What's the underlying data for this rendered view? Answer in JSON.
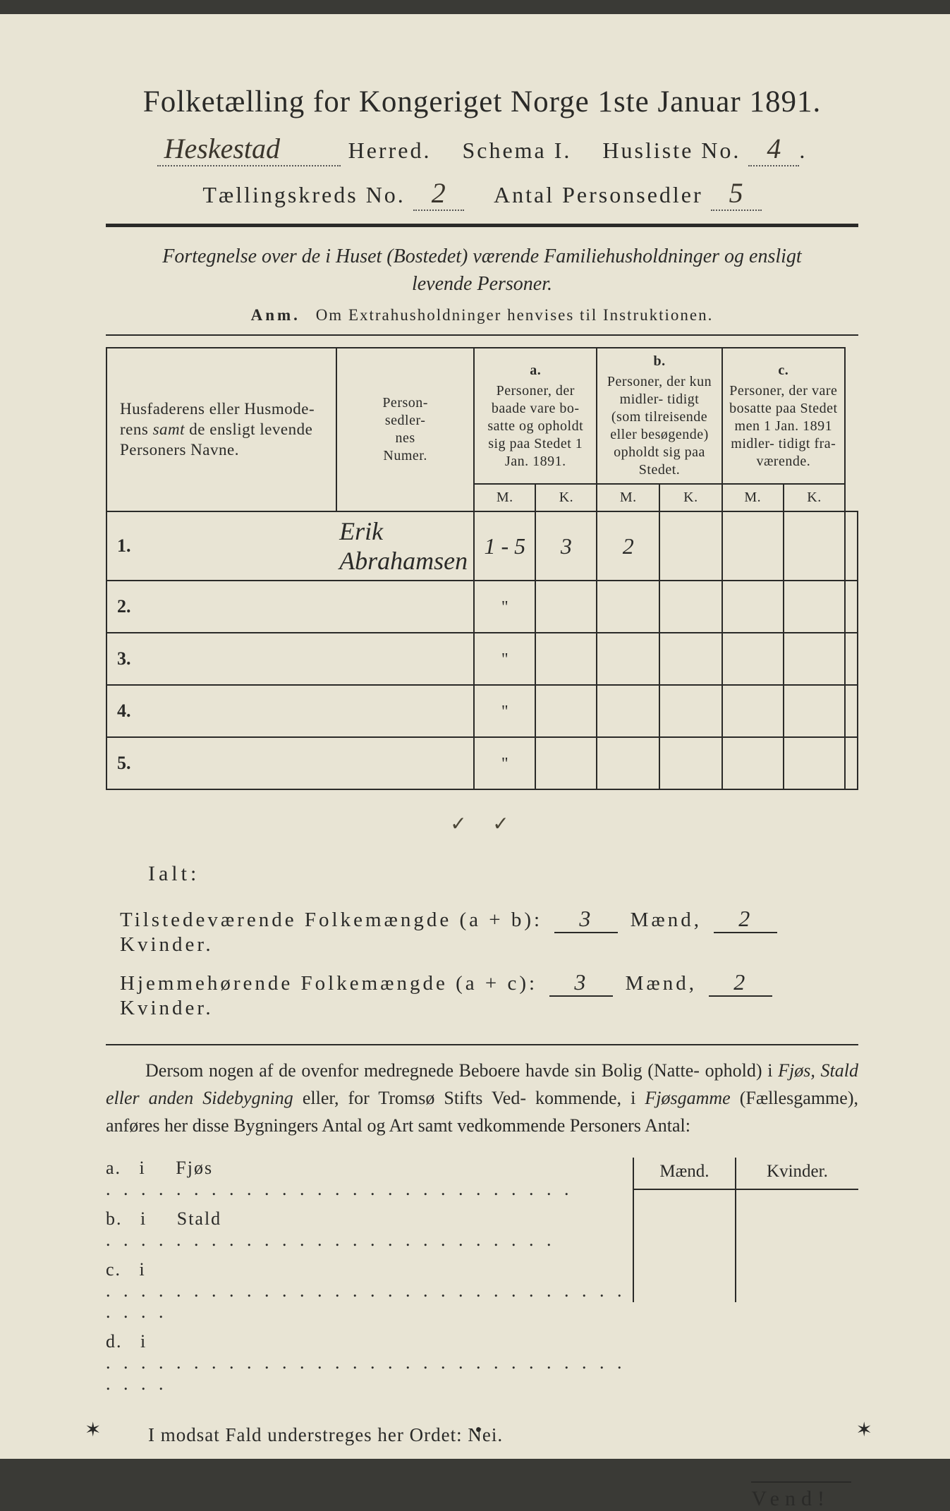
{
  "header": {
    "main_title": "Folketælling for Kongeriget Norge 1ste Januar 1891.",
    "herred_value": "Heskestad",
    "herred_label": "Herred.",
    "schema_label": "Schema I.",
    "husliste_label": "Husliste No.",
    "husliste_no": "4",
    "kreds_label": "Tællingskreds No.",
    "kreds_no": "2",
    "antal_label": "Antal Personsedler",
    "antal_value": "5"
  },
  "subhead": {
    "line1": "Fortegnelse over de i Huset (Bostedet) værende Familiehusholdninger og ensligt",
    "line2": "levende Personer.",
    "anm_label": "Anm.",
    "anm_text": "Om Extrahusholdninger henvises til Instruktionen."
  },
  "table": {
    "col_names_l1": "Husfaderens eller Husmode-",
    "col_names_l2": "rens samt de ensligt levende",
    "col_names_l3": "Personers Navne.",
    "col_num_l1": "Person-",
    "col_num_l2": "sedler-",
    "col_num_l3": "nes",
    "col_num_l4": "Numer.",
    "a_label": "a.",
    "a_text": "Personer, der baade vare bo- satte og opholdt sig paa Stedet 1 Jan. 1891.",
    "b_label": "b.",
    "b_text": "Personer, der kun midler- tidigt (som tilreisende eller besøgende) opholdt sig paa Stedet.",
    "c_label": "c.",
    "c_text": "Personer, der vare bosatte paa Stedet men 1 Jan. 1891 midler- tidigt fra- værende.",
    "M": "M.",
    "K": "K.",
    "rows": [
      {
        "n": "1.",
        "name": "Erik Abrahamsen",
        "num": "1 - 5",
        "aM": "3",
        "aK": "2",
        "bM": "",
        "bK": "",
        "cM": "",
        "cK": ""
      },
      {
        "n": "2.",
        "name": "",
        "num": "\"",
        "aM": "",
        "aK": "",
        "bM": "",
        "bK": "",
        "cM": "",
        "cK": ""
      },
      {
        "n": "3.",
        "name": "",
        "num": "\"",
        "aM": "",
        "aK": "",
        "bM": "",
        "bK": "",
        "cM": "",
        "cK": ""
      },
      {
        "n": "4.",
        "name": "",
        "num": "\"",
        "aM": "",
        "aK": "",
        "bM": "",
        "bK": "",
        "cM": "",
        "cK": ""
      },
      {
        "n": "5.",
        "name": "",
        "num": "\"",
        "aM": "",
        "aK": "",
        "bM": "",
        "bK": "",
        "cM": "",
        "cK": ""
      }
    ],
    "check_aM": "✓",
    "check_aK": "✓"
  },
  "totals": {
    "ialt": "Ialt:",
    "line1_label": "Tilstedeværende Folkemængde (a + b):",
    "line1_m": "3",
    "line1_m_label": "Mænd,",
    "line1_k": "2",
    "line1_k_label": "Kvinder.",
    "line2_label": "Hjemmehørende Folkemængde (a + c):",
    "line2_m": "3",
    "line2_k": "2"
  },
  "para": {
    "text1": "Dersom nogen af de ovenfor medregnede Beboere havde sin Bolig (Natte-",
    "text2": "ophold) i ",
    "it1": "Fjøs, Stald eller anden Sidebygning",
    "text3": " eller, for Tromsø Stifts Ved-",
    "text4": "kommende, i ",
    "it2": "Fjøsgamme",
    "text5": " (Fællesgamme), anføres her disse Bygningers Antal",
    "text6": "og Art samt vedkommende Personers Antal:"
  },
  "bldg": {
    "maend": "Mænd.",
    "kvinder": "Kvinder.",
    "rows": [
      {
        "k": "a.",
        "i": "i",
        "label": "Fjøs",
        "dots": ". . . . . . . . . . . . . . . . . . . . . . . . . . ."
      },
      {
        "k": "b.",
        "i": "i",
        "label": "Stald",
        "dots": ". . . . . . . . . . . . . . . . . . . . . . . . . ."
      },
      {
        "k": "c.",
        "i": "i",
        "label": "",
        "dots": ". . . . . . . . . . . . . . . . . . . . . . . . . . . . . . . . . ."
      },
      {
        "k": "d.",
        "i": "i",
        "label": "",
        "dots": ". . . . . . . . . . . . . . . . . . . . . . . . . . . . . . . . . ."
      }
    ]
  },
  "nei": "I modsat Fald understreges her Ordet: Nei.",
  "vend": "Vend!",
  "colors": {
    "paper": "#e8e4d4",
    "ink": "#2a2a28",
    "handwriting": "#3a352c",
    "background": "#3a3a36"
  }
}
